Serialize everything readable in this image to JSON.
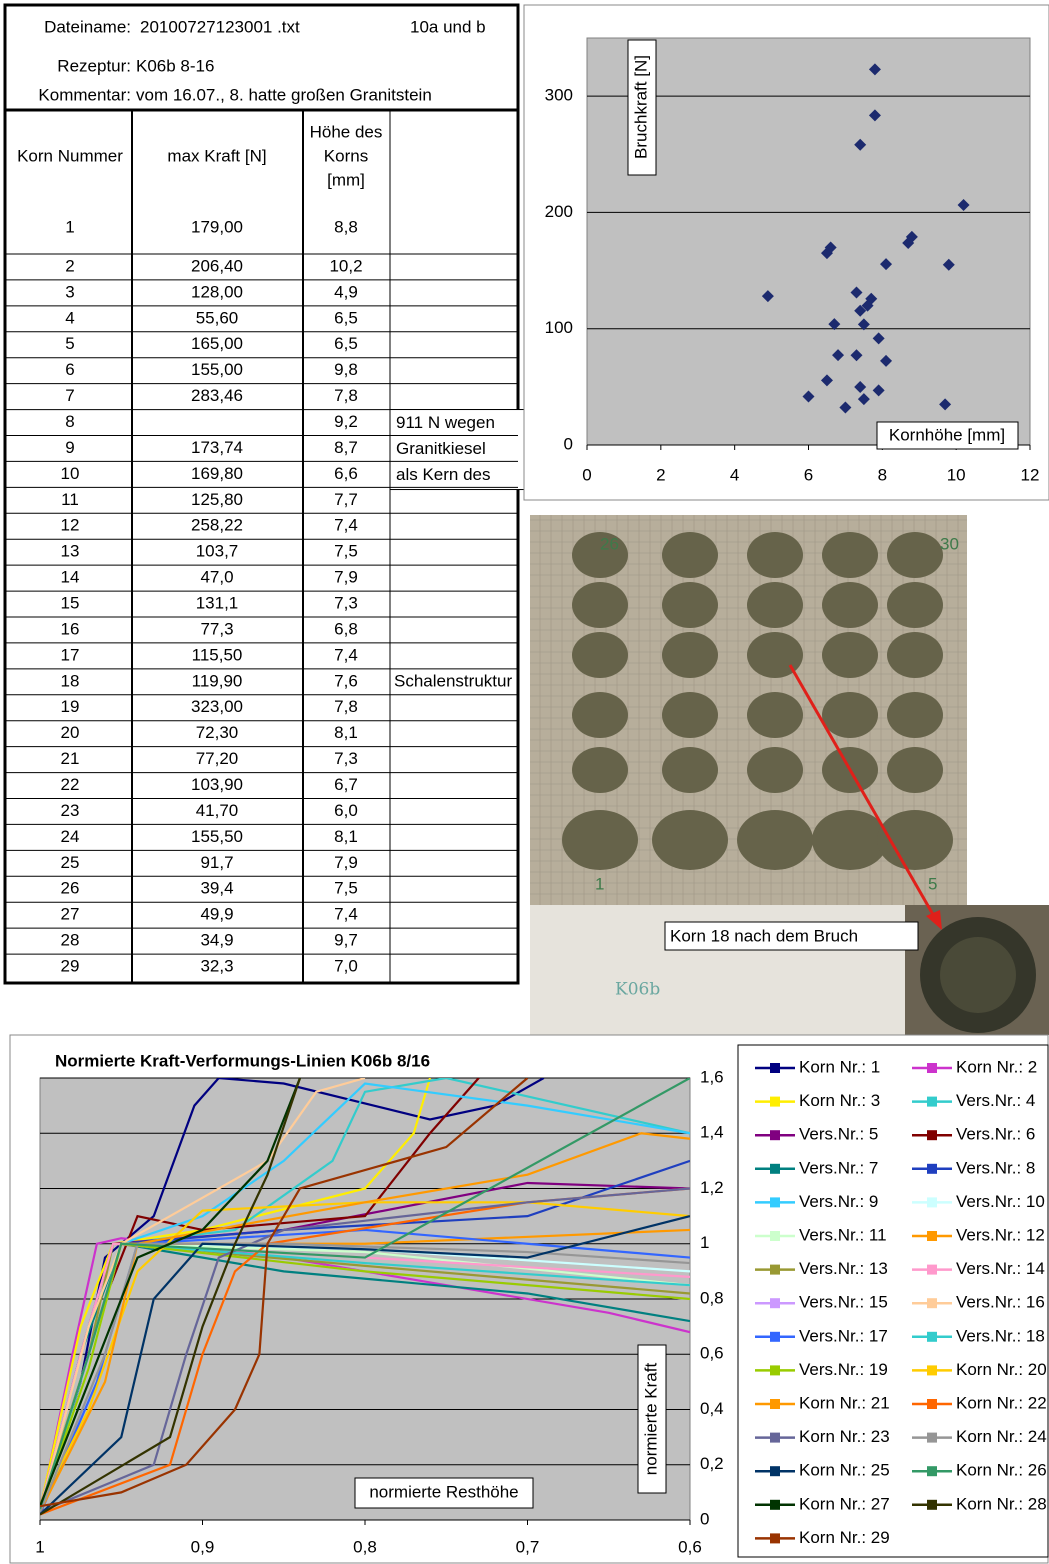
{
  "header": {
    "dateiname_label": "Dateiname:",
    "dateiname": "20100727123001 .txt",
    "versuch": "10a und b",
    "rezeptur_label": "Rezeptur:",
    "rezeptur": "K06b 8-16",
    "kommentar_label": "Kommentar:",
    "kommentar": "vom 16.07., 8. hatte großen Granitstein"
  },
  "table": {
    "columns": [
      "Korn Nummer",
      "max Kraft [N]",
      [
        "Höhe des",
        "Korns",
        "[mm]"
      ]
    ],
    "rows": [
      {
        "korn": 1,
        "kraft": "179,00",
        "hoehe": "8,8"
      },
      {
        "korn": 2,
        "kraft": "206,40",
        "hoehe": "10,2"
      },
      {
        "korn": 3,
        "kraft": "128,00",
        "hoehe": "4,9"
      },
      {
        "korn": 4,
        "kraft": "55,60",
        "hoehe": "6,5"
      },
      {
        "korn": 5,
        "kraft": "165,00",
        "hoehe": "6,5"
      },
      {
        "korn": 6,
        "kraft": "155,00",
        "hoehe": "9,8"
      },
      {
        "korn": 7,
        "kraft": "283,46",
        "hoehe": "7,8"
      },
      {
        "korn": 8,
        "hoehe": "9,2",
        "note": [
          "911 N wegen",
          "Granitkiesel",
          "als Kern des"
        ]
      },
      {
        "korn": 9,
        "kraft": "173,74",
        "hoehe": "8,7"
      },
      {
        "korn": 10,
        "kraft": "169,80",
        "hoehe": "6,6"
      },
      {
        "korn": 11,
        "kraft": "125,80",
        "hoehe": "7,7"
      },
      {
        "korn": 12,
        "kraft": "258,22",
        "hoehe": "7,4"
      },
      {
        "korn": 13,
        "kraft": "103,7",
        "hoehe": "7,5"
      },
      {
        "korn": 14,
        "kraft": "47,0",
        "hoehe": "7,9"
      },
      {
        "korn": 15,
        "kraft": "131,1",
        "hoehe": "7,3"
      },
      {
        "korn": 16,
        "kraft": "77,3",
        "hoehe": "6,8"
      },
      {
        "korn": 17,
        "kraft": "115,50",
        "hoehe": "7,4"
      },
      {
        "korn": 18,
        "kraft": "119,90",
        "hoehe": "7,6",
        "note": "Schalenstruktur"
      },
      {
        "korn": 19,
        "kraft": "323,00",
        "hoehe": "7,8"
      },
      {
        "korn": 20,
        "kraft": "72,30",
        "hoehe": "8,1"
      },
      {
        "korn": 21,
        "kraft": "77,20",
        "hoehe": "7,3"
      },
      {
        "korn": 22,
        "kraft": "103,90",
        "hoehe": "6,7"
      },
      {
        "korn": 23,
        "kraft": "41,70",
        "hoehe": "6,0"
      },
      {
        "korn": 24,
        "kraft": "155,50",
        "hoehe": "8,1"
      },
      {
        "korn": 25,
        "kraft": "91,7",
        "hoehe": "7,9"
      },
      {
        "korn": 26,
        "kraft": "39,4",
        "hoehe": "7,5"
      },
      {
        "korn": 27,
        "kraft": "49,9",
        "hoehe": "7,4"
      },
      {
        "korn": 28,
        "kraft": "34,9",
        "hoehe": "9,7"
      },
      {
        "korn": 29,
        "kraft": "32,3",
        "hoehe": "7,0"
      }
    ]
  },
  "photo": {
    "label": "Korn 18 nach dem Bruch",
    "handwriting": "K06b",
    "marks": [
      "26",
      "30",
      "1",
      "5"
    ]
  },
  "chart_data": [
    {
      "type": "scatter",
      "y_label": "Bruchkraft [N]",
      "x_label": "Kornhöhe [mm]",
      "color": "#1c2a6e",
      "grid": true,
      "x": [
        8.8,
        10.2,
        4.9,
        6.5,
        6.5,
        9.8,
        7.8,
        8.7,
        6.6,
        7.7,
        7.4,
        7.5,
        7.9,
        7.3,
        6.8,
        7.4,
        7.6,
        7.8,
        8.1,
        7.3,
        6.7,
        6.0,
        8.1,
        7.9,
        7.5,
        7.4,
        9.7,
        7.0
      ],
      "values": [
        179,
        206.4,
        128,
        55.6,
        165,
        155,
        283.46,
        173.74,
        169.8,
        125.8,
        258.22,
        103.7,
        47,
        131.1,
        77.3,
        115.5,
        119.9,
        323,
        72.3,
        77.2,
        103.9,
        41.7,
        155.5,
        91.7,
        39.4,
        49.9,
        34.9,
        32.3
      ],
      "xlim": [
        0,
        12
      ],
      "xticks": [
        0,
        2,
        4,
        6,
        8,
        10,
        12
      ],
      "ylim": [
        0,
        350
      ],
      "yticks": [
        0,
        100,
        200,
        300
      ]
    },
    {
      "type": "line",
      "title": "Normierte Kraft-Verformungs-Linien K06b 8/16",
      "x_label": "normierte Resthöhe",
      "y_label": "normierte Kraft",
      "grid": true,
      "legend": "right",
      "xlim": [
        1,
        0.6
      ],
      "xticks": [
        1,
        {
          "value": 0.9,
          "label": "0,9"
        },
        {
          "value": 0.8,
          "label": "0,8"
        },
        {
          "value": 0.7,
          "label": "0,7"
        },
        {
          "value": 0.6,
          "label": "0,6"
        }
      ],
      "ylim": [
        0,
        1.6
      ],
      "yticks": [
        0,
        {
          "value": 0.2,
          "label": "0,2"
        },
        {
          "value": 0.4,
          "label": "0,4"
        },
        {
          "value": 0.6,
          "label": "0,6"
        },
        {
          "value": 0.8,
          "label": "0,8"
        },
        1,
        {
          "value": 1.2,
          "label": "1,2"
        },
        {
          "value": 1.4,
          "label": "1,4"
        },
        {
          "value": 1.6,
          "label": "1,6"
        }
      ],
      "series": [
        {
          "name": "Korn Nr.: 1",
          "color": "#000080",
          "x": [
            1,
            0.975,
            0.96,
            0.93,
            0.905,
            0.89,
            0.85,
            0.76,
            0.72,
            0.69
          ],
          "values": [
            0.02,
            0.5,
            0.95,
            1.1,
            1.5,
            1.6,
            1.58,
            1.45,
            1.5,
            1.6
          ]
        },
        {
          "name": "Korn Nr.: 2",
          "color": "#cc33cc",
          "x": [
            1,
            0.98,
            0.965,
            0.95,
            0.85,
            0.75,
            0.65,
            0.6
          ],
          "values": [
            0.03,
            0.6,
            1,
            1.02,
            0.95,
            0.85,
            0.75,
            0.68
          ]
        },
        {
          "name": "Korn Nr.: 3",
          "color": "#ffee00",
          "x": [
            1,
            0.975,
            0.955,
            0.9,
            0.8,
            0.77,
            0.76
          ],
          "values": [
            0.04,
            0.7,
            1,
            1.05,
            1.2,
            1.4,
            1.6
          ]
        },
        {
          "name": "Vers.Nr.: 4",
          "color": "#33cccc",
          "x": [
            1,
            0.97,
            0.95,
            0.88,
            0.82,
            0.8,
            0.75,
            0.6
          ],
          "values": [
            0.05,
            0.6,
            1,
            1.05,
            1.3,
            1.55,
            1.6,
            1.4
          ]
        },
        {
          "name": "Vers.Nr.: 5",
          "color": "#800080",
          "x": [
            1,
            0.975,
            0.955,
            0.85,
            0.7,
            0.6
          ],
          "values": [
            0.03,
            0.6,
            1,
            1.05,
            1.22,
            1.2
          ]
        },
        {
          "name": "Vers.Nr.: 6",
          "color": "#800000",
          "x": [
            1,
            0.96,
            0.94,
            0.9,
            0.8,
            0.76,
            0.73
          ],
          "values": [
            0.02,
            0.8,
            1.1,
            1.05,
            1.1,
            1.4,
            1.6
          ]
        },
        {
          "name": "Vers.Nr.: 7",
          "color": "#008080",
          "x": [
            1,
            0.975,
            0.95,
            0.85,
            0.7,
            0.6
          ],
          "values": [
            0.04,
            0.6,
            1,
            0.9,
            0.82,
            0.72
          ]
        },
        {
          "name": "Vers.Nr.: 8",
          "color": "#1f3fbf",
          "x": [
            1,
            0.97,
            0.95,
            0.85,
            0.7,
            0.6
          ],
          "values": [
            0.02,
            0.6,
            1,
            1.05,
            1.1,
            1.3
          ]
        },
        {
          "name": "Vers.Nr.: 9",
          "color": "#33ccff",
          "x": [
            1,
            0.97,
            0.95,
            0.9,
            0.85,
            0.8,
            0.7,
            0.6
          ],
          "values": [
            0.03,
            0.7,
            1,
            1.1,
            1.3,
            1.58,
            1.5,
            1.4
          ]
        },
        {
          "name": "Vers.Nr.: 10",
          "color": "#ccffff",
          "x": [
            1,
            0.97,
            0.95,
            0.8,
            0.6
          ],
          "values": [
            0.02,
            0.6,
            1,
            0.98,
            0.9
          ]
        },
        {
          "name": "Vers.Nr.: 11",
          "color": "#ccffcc",
          "x": [
            1,
            0.97,
            0.95,
            0.8,
            0.6
          ],
          "values": [
            0.03,
            0.55,
            1,
            0.97,
            0.85
          ]
        },
        {
          "name": "Vers.Nr.: 12",
          "color": "#ff9900",
          "x": [
            1,
            0.97,
            0.95,
            0.8,
            0.6
          ],
          "values": [
            0.05,
            0.6,
            1,
            1,
            1.05
          ]
        },
        {
          "name": "Vers.Nr.: 13",
          "color": "#999933",
          "x": [
            1,
            0.97,
            0.955,
            0.8,
            0.6
          ],
          "values": [
            0.03,
            0.6,
            1,
            0.92,
            0.82
          ]
        },
        {
          "name": "Vers.Nr.: 14",
          "color": "#ff99cc",
          "x": [
            1,
            0.975,
            0.955,
            0.8,
            0.6
          ],
          "values": [
            0.04,
            0.6,
            1,
            0.95,
            0.88
          ]
        },
        {
          "name": "Vers.Nr.: 15",
          "color": "#cc99ff",
          "x": [
            1,
            0.97,
            0.95,
            0.8,
            0.6
          ],
          "values": [
            0.04,
            0.6,
            1,
            0.9,
            0.8
          ]
        },
        {
          "name": "Vers.Nr.: 16",
          "color": "#ffcc99",
          "x": [
            1,
            0.97,
            0.95,
            0.86,
            0.83,
            0.8
          ],
          "values": [
            0.03,
            0.7,
            1,
            1.3,
            1.55,
            1.6
          ]
        },
        {
          "name": "Vers.Nr.: 17",
          "color": "#3366ff",
          "x": [
            1,
            0.965,
            0.94,
            0.8,
            0.6
          ],
          "values": [
            0.02,
            0.5,
            1,
            1.05,
            0.95
          ]
        },
        {
          "name": "Vers.Nr.: 18",
          "color": "#33cccc",
          "x": [
            1,
            0.97,
            0.95,
            0.8,
            0.6
          ],
          "values": [
            0.03,
            0.6,
            1,
            0.93,
            0.85
          ]
        },
        {
          "name": "Vers.Nr.: 19",
          "color": "#99cc00",
          "x": [
            1,
            0.97,
            0.95,
            0.8,
            0.6
          ],
          "values": [
            0.04,
            0.55,
            1,
            0.9,
            0.8
          ]
        },
        {
          "name": "Korn Nr.: 20",
          "color": "#ffcc00",
          "x": [
            1,
            0.97,
            0.94,
            0.9,
            0.8,
            0.7,
            0.6
          ],
          "values": [
            0.05,
            0.4,
            0.9,
            1.12,
            1.15,
            1.15,
            1.1
          ]
        },
        {
          "name": "Korn Nr.: 21",
          "color": "#ff9900",
          "x": [
            1,
            0.96,
            0.94,
            0.8,
            0.7,
            0.63,
            0.6
          ],
          "values": [
            0.03,
            0.5,
            1,
            1.15,
            1.25,
            1.4,
            1.38
          ]
        },
        {
          "name": "Korn Nr.: 22",
          "color": "#ff6600",
          "x": [
            1,
            0.92,
            0.9,
            0.88,
            0.86,
            0.7,
            0.6
          ],
          "values": [
            0.02,
            0.2,
            0.6,
            0.9,
            1,
            1.15,
            1.2
          ]
        },
        {
          "name": "Korn Nr.: 23",
          "color": "#666699",
          "x": [
            1,
            0.93,
            0.91,
            0.89,
            0.85,
            0.7,
            0.6
          ],
          "values": [
            0.03,
            0.2,
            0.6,
            0.95,
            1.05,
            1.15,
            1.2
          ]
        },
        {
          "name": "Korn Nr.: 24",
          "color": "#969696",
          "x": [
            1,
            0.96,
            0.94,
            0.85,
            0.7,
            0.6
          ],
          "values": [
            0.03,
            0.6,
            1,
            1,
            0.97,
            0.93
          ]
        },
        {
          "name": "Korn Nr.: 25",
          "color": "#003366",
          "x": [
            1,
            0.95,
            0.93,
            0.9,
            0.8,
            0.7,
            0.6
          ],
          "values": [
            0.02,
            0.3,
            0.8,
            1,
            0.98,
            0.95,
            1.1
          ]
        },
        {
          "name": "Korn Nr.: 26",
          "color": "#339966",
          "x": [
            1,
            0.97,
            0.95,
            0.8,
            0.6
          ],
          "values": [
            0.04,
            0.6,
            1,
            0.95,
            1.6
          ]
        },
        {
          "name": "Korn Nr.: 27",
          "color": "#003300",
          "x": [
            1,
            0.97,
            0.94,
            0.9,
            0.86,
            0.84
          ],
          "values": [
            0.05,
            0.5,
            0.95,
            1.05,
            1.3,
            1.6
          ]
        },
        {
          "name": "Korn Nr.: 28",
          "color": "#333300",
          "x": [
            1,
            0.92,
            0.9,
            0.88,
            0.86,
            0.84
          ],
          "values": [
            0.02,
            0.3,
            0.7,
            1,
            1.25,
            1.6
          ]
        },
        {
          "name": "Korn Nr.: 29",
          "color": "#993300",
          "x": [
            1,
            0.95,
            0.91,
            0.88,
            0.865,
            0.86,
            0.84,
            0.75,
            0.7
          ],
          "values": [
            0.05,
            0.1,
            0.2,
            0.4,
            0.6,
            1,
            1.2,
            1.35,
            1.6
          ]
        }
      ]
    }
  ]
}
